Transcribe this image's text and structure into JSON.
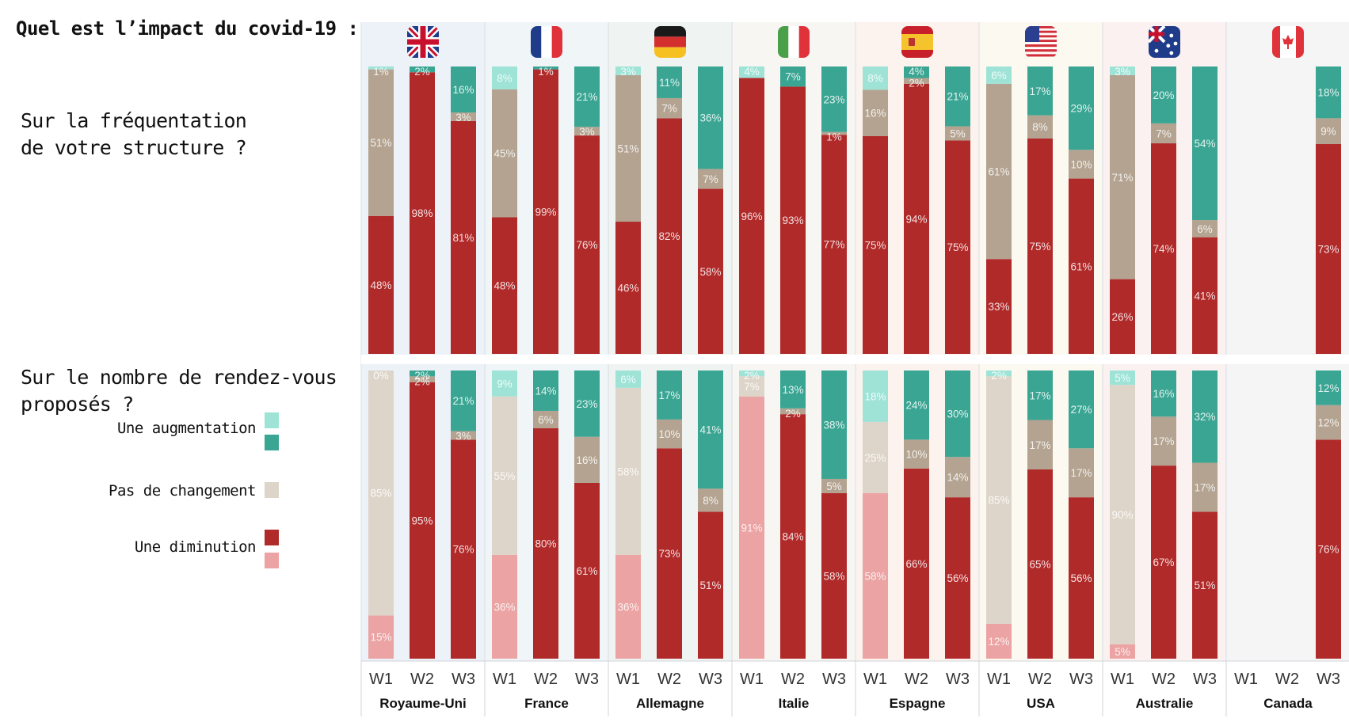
{
  "title": "Quel est l’impact du covid-19 :",
  "questions": [
    "Sur la fréquentation\nde votre structure ?",
    "Sur le nombre de rendez-vous\nproposés ?"
  ],
  "legend": {
    "increase": "Une augmentation",
    "nochange": "Pas de changement",
    "decrease": "Une diminution"
  },
  "colors": {
    "increase_light": "#9ee3d6",
    "increase_dark": "#3aa593",
    "nochange_dark": "#b3a390",
    "nochange_light": "#ddd5c9",
    "decrease_dark": "#b12a2a",
    "decrease_light": "#eba3a3"
  },
  "panel_backgrounds": [
    "#edf2f8",
    "#f0f5f8",
    "#eff4f2",
    "#f7f6f3",
    "#fcf3ef",
    "#fcf9f1",
    "#fcf1f1",
    "#f5f5f5"
  ],
  "flag_icons": [
    "uk-flag-icon",
    "france-flag-icon",
    "germany-flag-icon",
    "italy-flag-icon",
    "spain-flag-icon",
    "usa-flag-icon",
    "australia-flag-icon",
    "canada-flag-icon"
  ],
  "chart_data": [
    {
      "type": "bar",
      "stacked": true,
      "title": "Sur la fréquentation de votre structure ?",
      "countries": [
        "Royaume-Uni",
        "France",
        "Allemagne",
        "Italie",
        "Espagne",
        "USA",
        "Australie",
        "Canada"
      ],
      "waves": [
        "W1",
        "W2",
        "W3"
      ],
      "series_names": [
        "Une diminution",
        "Pas de changement",
        "Une augmentation"
      ],
      "data": [
        [
          [
            48,
            51,
            1
          ],
          [
            98,
            0,
            2
          ],
          [
            81,
            3,
            16
          ]
        ],
        [
          [
            48,
            45,
            8
          ],
          [
            99,
            0,
            1
          ],
          [
            76,
            3,
            21
          ]
        ],
        [
          [
            46,
            51,
            3
          ],
          [
            82,
            7,
            11
          ],
          [
            58,
            7,
            36
          ]
        ],
        [
          [
            96,
            0,
            4
          ],
          [
            93,
            0,
            7
          ],
          [
            77,
            1,
            23
          ]
        ],
        [
          [
            75,
            16,
            8
          ],
          [
            94,
            2,
            4
          ],
          [
            75,
            5,
            21
          ]
        ],
        [
          [
            33,
            61,
            6
          ],
          [
            75,
            8,
            17
          ],
          [
            61,
            10,
            29
          ]
        ],
        [
          [
            26,
            71,
            3
          ],
          [
            74,
            7,
            20
          ],
          [
            41,
            6,
            54
          ]
        ],
        [
          null,
          null,
          [
            73,
            9,
            18
          ]
        ]
      ]
    },
    {
      "type": "bar",
      "stacked": true,
      "title": "Sur le nombre de rendez-vous proposés ?",
      "countries": [
        "Royaume-Uni",
        "France",
        "Allemagne",
        "Italie",
        "Espagne",
        "USA",
        "Australie",
        "Canada"
      ],
      "waves": [
        "W1",
        "W2",
        "W3"
      ],
      "series_names": [
        "Une diminution",
        "Pas de changement",
        "Une augmentation"
      ],
      "data": [
        [
          [
            15,
            85,
            0
          ],
          [
            95,
            2,
            2
          ],
          [
            76,
            3,
            21
          ]
        ],
        [
          [
            36,
            55,
            9
          ],
          [
            80,
            6,
            14
          ],
          [
            61,
            16,
            23
          ]
        ],
        [
          [
            36,
            58,
            6
          ],
          [
            73,
            10,
            17
          ],
          [
            51,
            8,
            41
          ]
        ],
        [
          [
            91,
            7,
            2
          ],
          [
            84,
            2,
            13
          ],
          [
            58,
            5,
            38
          ]
        ],
        [
          [
            58,
            25,
            18
          ],
          [
            66,
            10,
            24
          ],
          [
            56,
            14,
            30
          ]
        ],
        [
          [
            12,
            85,
            2
          ],
          [
            65,
            17,
            17
          ],
          [
            56,
            17,
            27
          ]
        ],
        [
          [
            5,
            90,
            5
          ],
          [
            67,
            17,
            16
          ],
          [
            51,
            17,
            32
          ]
        ],
        [
          null,
          null,
          [
            76,
            12,
            12
          ]
        ]
      ]
    }
  ]
}
